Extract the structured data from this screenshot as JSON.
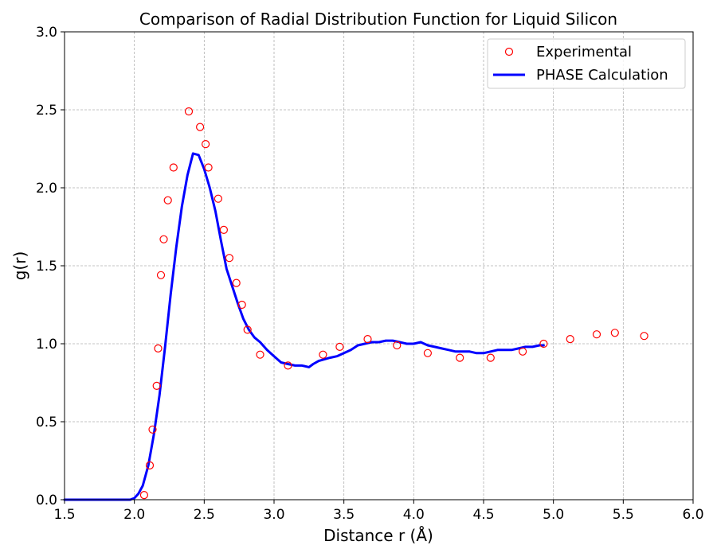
{
  "chart_data": {
    "type": "scatter",
    "title": "Comparison of Radial Distribution Function for Liquid Silicon",
    "xlabel": "Distance r (Å)",
    "ylabel": "g(r)",
    "xlim": [
      1.5,
      6.0
    ],
    "ylim": [
      0.0,
      3.0
    ],
    "xticks": [
      "1.5",
      "2.0",
      "2.5",
      "3.0",
      "3.5",
      "4.0",
      "4.5",
      "5.0",
      "5.5",
      "6.0"
    ],
    "yticks": [
      "0.0",
      "0.5",
      "1.0",
      "1.5",
      "2.0",
      "2.5",
      "3.0"
    ],
    "grid": true,
    "legend_position": "top-right",
    "series": [
      {
        "name": "Experimental",
        "kind": "scatter",
        "color": "#ff0000",
        "marker": "open-circle",
        "x": [
          2.07,
          2.11,
          2.13,
          2.16,
          2.17,
          2.19,
          2.21,
          2.24,
          2.28,
          2.39,
          2.47,
          2.51,
          2.53,
          2.6,
          2.64,
          2.68,
          2.73,
          2.77,
          2.81,
          2.9,
          3.1,
          3.35,
          3.47,
          3.67,
          3.88,
          4.1,
          4.33,
          4.55,
          4.78,
          4.93,
          5.12,
          5.31,
          5.44,
          5.65
        ],
        "y": [
          0.03,
          0.22,
          0.45,
          0.73,
          0.97,
          1.44,
          1.67,
          1.92,
          2.13,
          2.49,
          2.39,
          2.28,
          2.13,
          1.93,
          1.73,
          1.55,
          1.39,
          1.25,
          1.09,
          0.93,
          0.86,
          0.93,
          0.98,
          1.03,
          0.99,
          0.94,
          0.91,
          0.91,
          0.95,
          1.0,
          1.03,
          1.06,
          1.07,
          1.05
        ]
      },
      {
        "name": "PHASE Calculation",
        "kind": "line",
        "color": "#0000ff",
        "x": [
          1.5,
          1.6,
          1.7,
          1.8,
          1.9,
          1.97,
          2.0,
          2.03,
          2.06,
          2.1,
          2.14,
          2.18,
          2.22,
          2.26,
          2.3,
          2.34,
          2.38,
          2.42,
          2.46,
          2.5,
          2.54,
          2.58,
          2.62,
          2.66,
          2.7,
          2.74,
          2.78,
          2.82,
          2.86,
          2.9,
          2.95,
          3.0,
          3.05,
          3.1,
          3.15,
          3.2,
          3.25,
          3.28,
          3.32,
          3.36,
          3.4,
          3.45,
          3.5,
          3.55,
          3.6,
          3.65,
          3.7,
          3.75,
          3.8,
          3.85,
          3.9,
          3.95,
          4.0,
          4.05,
          4.1,
          4.15,
          4.2,
          4.25,
          4.3,
          4.35,
          4.4,
          4.45,
          4.5,
          4.55,
          4.6,
          4.65,
          4.7,
          4.75,
          4.8,
          4.85,
          4.9,
          4.93
        ],
        "y": [
          0.0,
          0.0,
          0.0,
          0.0,
          0.0,
          0.0,
          0.01,
          0.04,
          0.09,
          0.22,
          0.42,
          0.67,
          0.98,
          1.32,
          1.62,
          1.88,
          2.08,
          2.22,
          2.21,
          2.12,
          2.0,
          1.85,
          1.66,
          1.48,
          1.37,
          1.26,
          1.16,
          1.09,
          1.04,
          1.01,
          0.96,
          0.92,
          0.88,
          0.87,
          0.86,
          0.86,
          0.85,
          0.87,
          0.89,
          0.9,
          0.91,
          0.92,
          0.94,
          0.96,
          0.99,
          1.0,
          1.01,
          1.01,
          1.02,
          1.02,
          1.01,
          1.0,
          1.0,
          1.01,
          0.99,
          0.98,
          0.97,
          0.96,
          0.95,
          0.95,
          0.95,
          0.94,
          0.94,
          0.95,
          0.96,
          0.96,
          0.96,
          0.97,
          0.98,
          0.98,
          0.99,
          0.99
        ]
      }
    ]
  }
}
